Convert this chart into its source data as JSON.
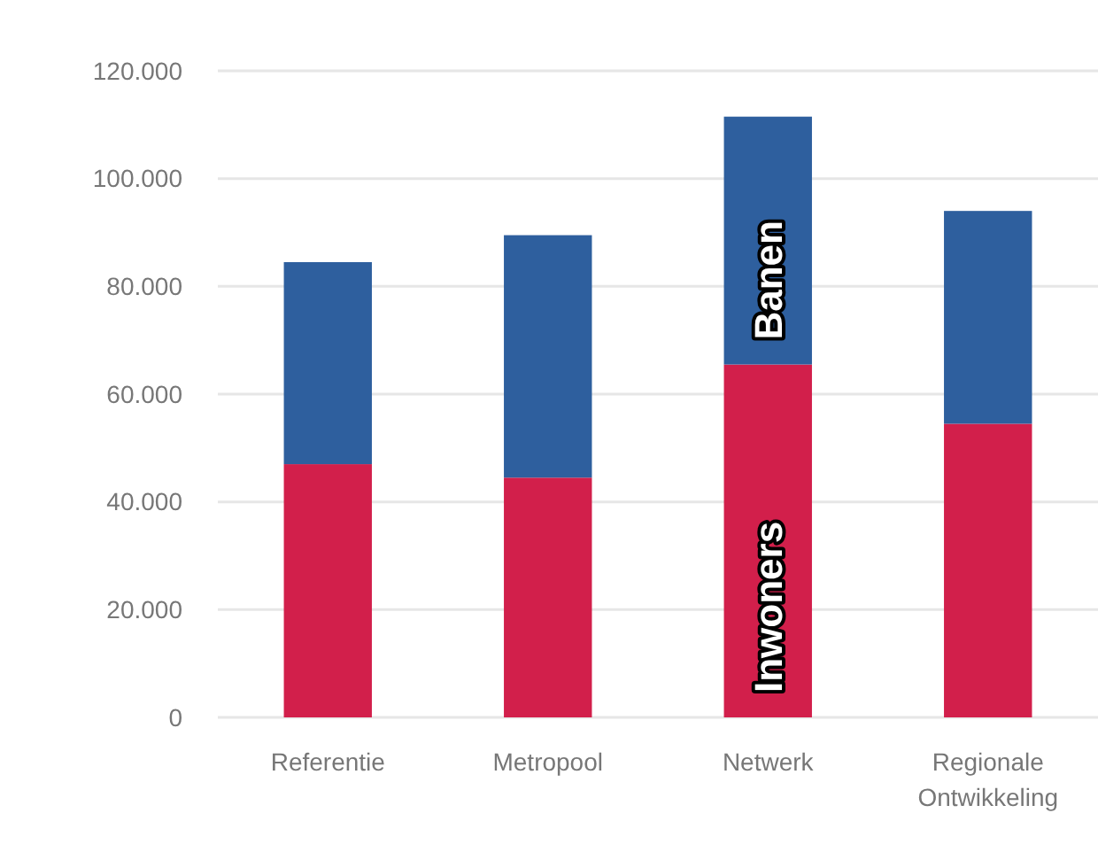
{
  "chart_data": {
    "type": "bar",
    "stacked": true,
    "categories": [
      "Referentie",
      "Metropool",
      "Netwerk",
      "Regionale Ontwikkeling"
    ],
    "series": [
      {
        "name": "Inwoners",
        "color": "#d21f4b",
        "values": [
          47000,
          44500,
          65500,
          54500
        ]
      },
      {
        "name": "Banen",
        "color": "#2e5f9e",
        "values": [
          37500,
          45000,
          46000,
          39500
        ]
      }
    ],
    "ylim": [
      0,
      120000
    ],
    "yticks": [
      {
        "value": 0,
        "label": "0"
      },
      {
        "value": 20000,
        "label": "20.000"
      },
      {
        "value": 40000,
        "label": "40.000"
      },
      {
        "value": 60000,
        "label": "60.000"
      },
      {
        "value": 80000,
        "label": "80.000"
      },
      {
        "value": 100000,
        "label": "100.000"
      },
      {
        "value": 120000,
        "label": "120.000"
      }
    ],
    "grid": "y"
  }
}
